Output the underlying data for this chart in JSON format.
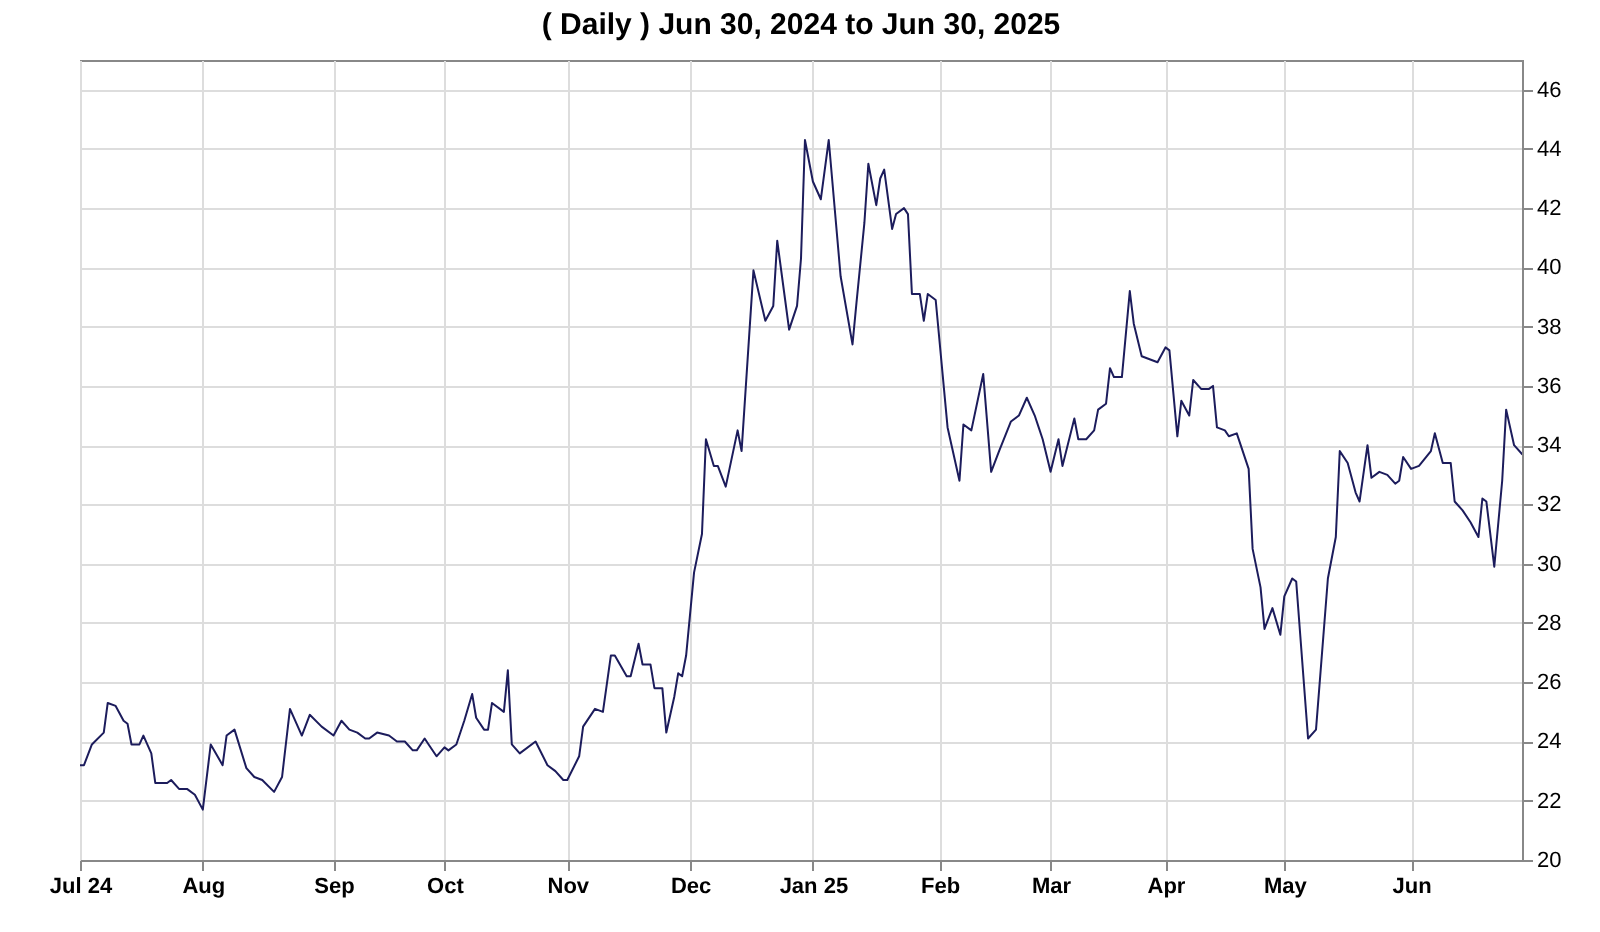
{
  "chart_data": {
    "type": "line",
    "title": "( Daily ) Jun 30, 2024 to Jun 30, 2025",
    "x": [
      "2024-07-01",
      "2024-07-02",
      "2024-07-04",
      "2024-07-07",
      "2024-07-08",
      "2024-07-10",
      "2024-07-12",
      "2024-07-13",
      "2024-07-14",
      "2024-07-16",
      "2024-07-17",
      "2024-07-19",
      "2024-07-20",
      "2024-07-23",
      "2024-07-24",
      "2024-07-26",
      "2024-07-28",
      "2024-07-30",
      "2024-08-01",
      "2024-08-03",
      "2024-08-06",
      "2024-08-07",
      "2024-08-09",
      "2024-08-12",
      "2024-08-14",
      "2024-08-16",
      "2024-08-19",
      "2024-08-21",
      "2024-08-23",
      "2024-08-26",
      "2024-08-28",
      "2024-08-31",
      "2024-09-03",
      "2024-09-05",
      "2024-09-07",
      "2024-09-09",
      "2024-09-11",
      "2024-09-12",
      "2024-09-14",
      "2024-09-17",
      "2024-09-19",
      "2024-09-21",
      "2024-09-23",
      "2024-09-24",
      "2024-09-26",
      "2024-09-27",
      "2024-09-29",
      "2024-10-01",
      "2024-10-02",
      "2024-10-04",
      "2024-10-06",
      "2024-10-08",
      "2024-10-09",
      "2024-10-11",
      "2024-10-12",
      "2024-10-13",
      "2024-10-16",
      "2024-10-17",
      "2024-10-18",
      "2024-10-20",
      "2024-10-24",
      "2024-10-27",
      "2024-10-29",
      "2024-10-31",
      "2024-11-01",
      "2024-11-04",
      "2024-11-05",
      "2024-11-08",
      "2024-11-10",
      "2024-11-12",
      "2024-11-13",
      "2024-11-16",
      "2024-11-17",
      "2024-11-19",
      "2024-11-20",
      "2024-11-22",
      "2024-11-23",
      "2024-11-25",
      "2024-11-26",
      "2024-11-28",
      "2024-11-29",
      "2024-11-30",
      "2024-12-01",
      "2024-12-03",
      "2024-12-05",
      "2024-12-06",
      "2024-12-08",
      "2024-12-09",
      "2024-12-11",
      "2024-12-14",
      "2024-12-15",
      "2024-12-18",
      "2024-12-21",
      "2024-12-23",
      "2024-12-24",
      "2024-12-26",
      "2024-12-27",
      "2024-12-29",
      "2024-12-30",
      "2024-12-31",
      "2025-01-02",
      "2025-01-04",
      "2025-01-06",
      "2025-01-09",
      "2025-01-12",
      "2025-01-13",
      "2025-01-15",
      "2025-01-16",
      "2025-01-18",
      "2025-01-19",
      "2025-01-20",
      "2025-01-22",
      "2025-01-23",
      "2025-01-25",
      "2025-01-26",
      "2025-01-27",
      "2025-01-29",
      "2025-01-30",
      "2025-01-31",
      "2025-02-02",
      "2025-02-05",
      "2025-02-06",
      "2025-02-08",
      "2025-02-09",
      "2025-02-11",
      "2025-02-14",
      "2025-02-16",
      "2025-02-18",
      "2025-02-21",
      "2025-02-23",
      "2025-02-25",
      "2025-02-27",
      "2025-02-28",
      "2025-03-01",
      "2025-03-03",
      "2025-03-05",
      "2025-03-06",
      "2025-03-09",
      "2025-03-10",
      "2025-03-12",
      "2025-03-14",
      "2025-03-15",
      "2025-03-17",
      "2025-03-18",
      "2025-03-19",
      "2025-03-21",
      "2025-03-23",
      "2025-03-24",
      "2025-03-26",
      "2025-03-28",
      "2025-03-30",
      "2025-04-01",
      "2025-04-02",
      "2025-04-04",
      "2025-04-05",
      "2025-04-07",
      "2025-04-08",
      "2025-04-10",
      "2025-04-12",
      "2025-04-13",
      "2025-04-14",
      "2025-04-16",
      "2025-04-17",
      "2025-04-19",
      "2025-04-22",
      "2025-04-23",
      "2025-04-25",
      "2025-04-26",
      "2025-04-28",
      "2025-04-30",
      "2025-05-01",
      "2025-05-03",
      "2025-05-04",
      "2025-05-07",
      "2025-05-09",
      "2025-05-12",
      "2025-05-14",
      "2025-05-15",
      "2025-05-17",
      "2025-05-19",
      "2025-05-20",
      "2025-05-22",
      "2025-05-23",
      "2025-05-25",
      "2025-05-27",
      "2025-05-29",
      "2025-05-30",
      "2025-05-31",
      "2025-06-02",
      "2025-06-04",
      "2025-06-07",
      "2025-06-08",
      "2025-06-10",
      "2025-06-12",
      "2025-06-13",
      "2025-06-15",
      "2025-06-17",
      "2025-06-19",
      "2025-06-20",
      "2025-06-21",
      "2025-06-23",
      "2025-06-25",
      "2025-06-26",
      "2025-06-28",
      "2025-06-30"
    ],
    "series": [
      {
        "color": "#1c1c5c",
        "values": [
          23.2,
          23.2,
          23.9,
          24.3,
          25.3,
          25.2,
          24.7,
          24.6,
          23.9,
          23.9,
          24.2,
          23.6,
          22.6,
          22.6,
          22.7,
          22.4,
          22.4,
          22.2,
          21.7,
          23.9,
          23.2,
          24.2,
          24.4,
          23.1,
          22.8,
          22.7,
          22.3,
          22.8,
          25.1,
          24.2,
          24.9,
          24.5,
          24.2,
          24.7,
          24.4,
          24.3,
          24.1,
          24.1,
          24.3,
          24.2,
          24.0,
          24.0,
          23.7,
          23.7,
          24.1,
          23.9,
          23.5,
          23.8,
          23.7,
          23.9,
          24.7,
          25.6,
          24.8,
          24.4,
          24.4,
          25.3,
          25.0,
          26.4,
          23.9,
          23.6,
          24.0,
          23.2,
          23.0,
          22.7,
          22.7,
          23.5,
          24.5,
          25.1,
          25.0,
          26.9,
          26.9,
          26.2,
          26.2,
          27.3,
          26.6,
          26.6,
          25.8,
          25.8,
          24.3,
          25.5,
          26.3,
          26.2,
          26.9,
          29.7,
          31.0,
          34.2,
          33.3,
          33.3,
          32.6,
          34.5,
          33.8,
          39.9,
          38.2,
          38.7,
          40.9,
          38.9,
          37.9,
          38.7,
          40.3,
          44.3,
          42.9,
          42.3,
          44.3,
          39.7,
          37.4,
          38.8,
          41.5,
          43.5,
          42.1,
          43.0,
          43.3,
          41.3,
          41.8,
          42.0,
          41.8,
          39.1,
          39.1,
          38.2,
          39.1,
          38.9,
          34.6,
          34.0,
          32.8,
          34.7,
          34.5,
          36.4,
          33.1,
          33.8,
          34.8,
          35.0,
          35.6,
          35.0,
          34.6,
          34.2,
          33.1,
          34.2,
          33.3,
          34.9,
          34.2,
          34.2,
          34.5,
          35.2,
          35.4,
          36.6,
          36.3,
          36.3,
          39.2,
          38.1,
          37.0,
          36.9,
          36.8,
          37.3,
          37.2,
          34.3,
          35.5,
          35.0,
          36.2,
          35.9,
          35.9,
          36.0,
          34.6,
          34.5,
          34.3,
          34.4,
          33.2,
          30.5,
          29.2,
          27.8,
          28.5,
          27.6,
          28.9,
          29.5,
          29.4,
          24.1,
          24.4,
          29.5,
          30.9,
          33.8,
          33.4,
          32.4,
          32.1,
          34.0,
          32.9,
          33.1,
          33.0,
          32.7,
          32.8,
          33.6,
          33.2,
          33.3,
          33.8,
          34.4,
          33.4,
          33.4,
          32.1,
          31.8,
          31.4,
          30.9,
          32.2,
          32.1,
          29.9,
          32.8,
          35.2,
          34.0,
          33.7
        ]
      }
    ],
    "xlim": [
      "2024-07-01",
      "2025-06-30"
    ],
    "xticks": [
      {
        "value": "2024-07-01",
        "label": "Jul 24"
      },
      {
        "value": "2024-08-01",
        "label": "Aug"
      },
      {
        "value": "2024-09-03",
        "label": "Sep"
      },
      {
        "value": "2024-10-01",
        "label": "Oct"
      },
      {
        "value": "2024-11-01",
        "label": "Nov"
      },
      {
        "value": "2024-12-02",
        "label": "Dec"
      },
      {
        "value": "2025-01-02",
        "label": "Jan 25"
      },
      {
        "value": "2025-02-03",
        "label": "Feb"
      },
      {
        "value": "2025-03-03",
        "label": "Mar"
      },
      {
        "value": "2025-04-01",
        "label": "Apr"
      },
      {
        "value": "2025-05-01",
        "label": "May"
      },
      {
        "value": "2025-06-02",
        "label": "Jun"
      }
    ],
    "ylim": [
      20,
      47
    ],
    "yticks": [
      20,
      22,
      24,
      26,
      28,
      30,
      32,
      34,
      36,
      38,
      40,
      42,
      44,
      46
    ],
    "grid": true
  }
}
